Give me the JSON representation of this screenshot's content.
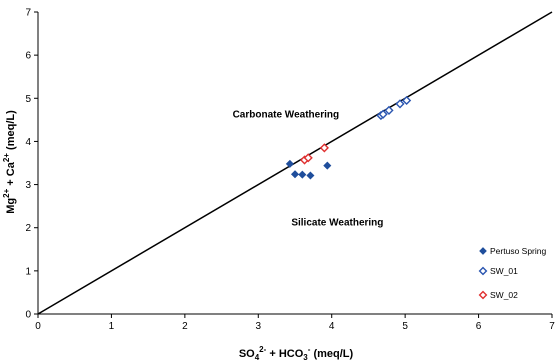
{
  "chart_data": {
    "type": "scatter",
    "xlim": [
      0,
      7
    ],
    "ylim": [
      0,
      7
    ],
    "x_ticks": [
      0,
      1,
      2,
      3,
      4,
      5,
      6,
      7
    ],
    "y_ticks": [
      0,
      1,
      2,
      3,
      4,
      5,
      6,
      7
    ],
    "xlabel": {
      "base": "SO",
      "sub1": "4",
      "sup1": "2-",
      "mid": " + HCO",
      "sub2": "3",
      "sup2": "-",
      "end": " (meq/L)"
    },
    "ylabel": {
      "base": "Mg",
      "sup1": "2+",
      "mid": " + Ca",
      "sup2": "2+",
      "end": " (meq/L)"
    },
    "grid": false,
    "reference_line": {
      "from": [
        0,
        0
      ],
      "to": [
        7,
        7
      ]
    },
    "annotations": [
      {
        "text": "Carbonate Weathering",
        "x": 2.65,
        "y": 4.55
      },
      {
        "text": "Silicate Weathering",
        "x": 3.45,
        "y": 2.05
      }
    ],
    "legend_position": "right",
    "series": [
      {
        "name": "Pertuso Spring",
        "color": "#1f4e9c",
        "marker": "filled-diamond",
        "points": [
          [
            3.43,
            3.48
          ],
          [
            3.5,
            3.24
          ],
          [
            3.6,
            3.23
          ],
          [
            3.71,
            3.21
          ],
          [
            3.94,
            3.44
          ]
        ]
      },
      {
        "name": "SW_01",
        "color": "#2a55b0",
        "marker": "open-diamond",
        "points": [
          [
            4.67,
            4.6
          ],
          [
            4.7,
            4.63
          ],
          [
            4.78,
            4.72
          ],
          [
            4.93,
            4.87
          ],
          [
            5.02,
            4.95
          ]
        ]
      },
      {
        "name": "SW_02",
        "color": "#e03030",
        "marker": "open-diamond",
        "points": [
          [
            3.63,
            3.57
          ],
          [
            3.68,
            3.62
          ],
          [
            3.9,
            3.85
          ]
        ]
      }
    ]
  }
}
